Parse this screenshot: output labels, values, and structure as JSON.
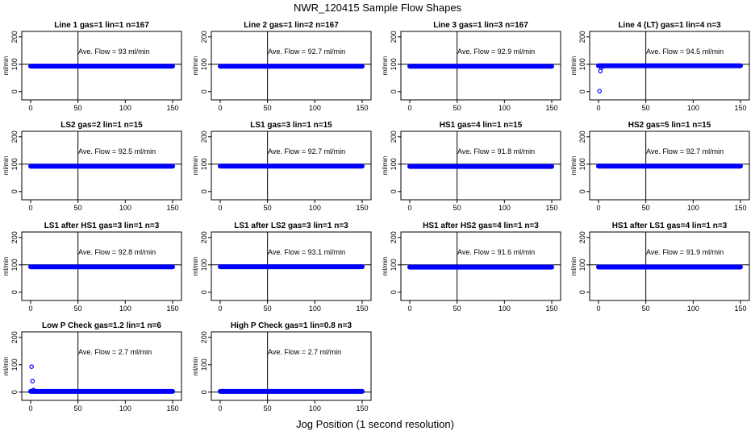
{
  "figure": {
    "title": "NWR_120415  Sample Flow Shapes",
    "xlabel": "Jog Position (1 second resolution)"
  },
  "style": {
    "point_color": "#0000ff",
    "axis_color": "#000000",
    "refline_color": "#000000"
  },
  "chart_data": [
    {
      "type": "scatter",
      "title": "Line 1 gas=1 lin=1 n=167",
      "ylabel": "ml/min",
      "annotation": "Ave. Flow = 93  ml/min",
      "xlim": [
        0,
        150
      ],
      "ylim": [
        -30,
        220
      ],
      "xticks": [
        0,
        50,
        100,
        150
      ],
      "yticks": [
        0,
        100,
        200
      ],
      "vline": 50,
      "hline": 100,
      "flow": 93,
      "series": []
    },
    {
      "type": "scatter",
      "title": "Line 2 gas=1 lin=2 n=167",
      "ylabel": "ml/min",
      "annotation": "Ave. Flow = 92.7  ml/min",
      "xlim": [
        0,
        150
      ],
      "ylim": [
        -30,
        220
      ],
      "xticks": [
        0,
        50,
        100,
        150
      ],
      "yticks": [
        0,
        100,
        200
      ],
      "vline": 50,
      "hline": 100,
      "flow": 92.7,
      "series": []
    },
    {
      "type": "scatter",
      "title": "Line 3 gas=1 lin=3 n=167",
      "ylabel": "ml/min",
      "annotation": "Ave. Flow = 92.9  ml/min",
      "xlim": [
        0,
        150
      ],
      "ylim": [
        -30,
        220
      ],
      "xticks": [
        0,
        50,
        100,
        150
      ],
      "yticks": [
        0,
        100,
        200
      ],
      "vline": 50,
      "hline": 100,
      "flow": 92.9,
      "series": []
    },
    {
      "type": "scatter",
      "title": "Line 4 (LT) gas=1 lin=4 n=3",
      "ylabel": "ml/min",
      "annotation": "Ave. Flow = 94.5  ml/min",
      "xlim": [
        0,
        150
      ],
      "ylim": [
        -30,
        220
      ],
      "xticks": [
        0,
        50,
        100,
        150
      ],
      "yticks": [
        0,
        100,
        200
      ],
      "vline": 50,
      "hline": 100,
      "flow": 94.5,
      "series": [
        [
          1,
          2
        ],
        [
          2,
          75
        ],
        [
          3,
          88
        ],
        [
          4,
          93
        ],
        [
          6,
          95
        ]
      ]
    },
    {
      "type": "scatter",
      "title": "LS2 gas=2 lin=1 n=15",
      "ylabel": "ml/min",
      "annotation": "Ave. Flow = 92.5  ml/min",
      "xlim": [
        0,
        150
      ],
      "ylim": [
        -30,
        220
      ],
      "xticks": [
        0,
        50,
        100,
        150
      ],
      "yticks": [
        0,
        100,
        200
      ],
      "vline": 50,
      "hline": 100,
      "flow": 92.5,
      "series": []
    },
    {
      "type": "scatter",
      "title": "LS1 gas=3 lin=1 n=15",
      "ylabel": "ml/min",
      "annotation": "Ave. Flow = 92.7  ml/min",
      "xlim": [
        0,
        150
      ],
      "ylim": [
        -30,
        220
      ],
      "xticks": [
        0,
        50,
        100,
        150
      ],
      "yticks": [
        0,
        100,
        200
      ],
      "vline": 50,
      "hline": 100,
      "flow": 92.7,
      "series": []
    },
    {
      "type": "scatter",
      "title": "HS1 gas=4 lin=1 n=15",
      "ylabel": "ml/min",
      "annotation": "Ave. Flow = 91.8  ml/min",
      "xlim": [
        0,
        150
      ],
      "ylim": [
        -30,
        220
      ],
      "xticks": [
        0,
        50,
        100,
        150
      ],
      "yticks": [
        0,
        100,
        200
      ],
      "vline": 50,
      "hline": 100,
      "flow": 91.8,
      "series": []
    },
    {
      "type": "scatter",
      "title": "HS2 gas=5 lin=1 n=15",
      "ylabel": "ml/min",
      "annotation": "Ave. Flow = 92.7  ml/min",
      "xlim": [
        0,
        150
      ],
      "ylim": [
        -30,
        220
      ],
      "xticks": [
        0,
        50,
        100,
        150
      ],
      "yticks": [
        0,
        100,
        200
      ],
      "vline": 50,
      "hline": 100,
      "flow": 92.7,
      "series": []
    },
    {
      "type": "scatter",
      "title": "LS1 after HS1 gas=3 lin=1 n=3",
      "ylabel": "ml/min",
      "annotation": "Ave. Flow = 92.8  ml/min",
      "xlim": [
        0,
        150
      ],
      "ylim": [
        -30,
        220
      ],
      "xticks": [
        0,
        50,
        100,
        150
      ],
      "yticks": [
        0,
        100,
        200
      ],
      "vline": 50,
      "hline": 100,
      "flow": 92.8,
      "series": []
    },
    {
      "type": "scatter",
      "title": "LS1 after LS2 gas=3 lin=1 n=3",
      "ylabel": "ml/min",
      "annotation": "Ave. Flow = 93.1  ml/min",
      "xlim": [
        0,
        150
      ],
      "ylim": [
        -30,
        220
      ],
      "xticks": [
        0,
        50,
        100,
        150
      ],
      "yticks": [
        0,
        100,
        200
      ],
      "vline": 50,
      "hline": 100,
      "flow": 93.1,
      "series": []
    },
    {
      "type": "scatter",
      "title": "HS1 after HS2 gas=4 lin=1 n=3",
      "ylabel": "ml/min",
      "annotation": "Ave. Flow = 91.6  ml/min",
      "xlim": [
        0,
        150
      ],
      "ylim": [
        -30,
        220
      ],
      "xticks": [
        0,
        50,
        100,
        150
      ],
      "yticks": [
        0,
        100,
        200
      ],
      "vline": 50,
      "hline": 100,
      "flow": 91.6,
      "series": []
    },
    {
      "type": "scatter",
      "title": "HS1 after LS1 gas=4 lin=1 n=3",
      "ylabel": "ml/min",
      "annotation": "Ave. Flow = 91.9  ml/min",
      "xlim": [
        0,
        150
      ],
      "ylim": [
        -30,
        220
      ],
      "xticks": [
        0,
        50,
        100,
        150
      ],
      "yticks": [
        0,
        100,
        200
      ],
      "vline": 50,
      "hline": 100,
      "flow": 91.9,
      "series": []
    },
    {
      "type": "scatter",
      "title": "Low P Check gas=1.2 lin=1 n=6",
      "ylabel": "ml/min",
      "annotation": "Ave. Flow = 2.7  ml/min",
      "xlim": [
        0,
        150
      ],
      "ylim": [
        -30,
        220
      ],
      "xticks": [
        0,
        50,
        100,
        150
      ],
      "yticks": [
        0,
        100,
        200
      ],
      "vline": 50,
      "hline": 0,
      "flow": 2.7,
      "series": [
        [
          1,
          93
        ],
        [
          2,
          40
        ],
        [
          3,
          8
        ]
      ]
    },
    {
      "type": "scatter",
      "title": "High P Check gas=1 lin=0.8 n=3",
      "ylabel": "ml/min",
      "annotation": "Ave. Flow = 2.7  ml/min",
      "xlim": [
        0,
        150
      ],
      "ylim": [
        -30,
        220
      ],
      "xticks": [
        0,
        50,
        100,
        150
      ],
      "yticks": [
        0,
        100,
        200
      ],
      "vline": 50,
      "hline": 0,
      "flow": 2.7,
      "series": []
    }
  ]
}
